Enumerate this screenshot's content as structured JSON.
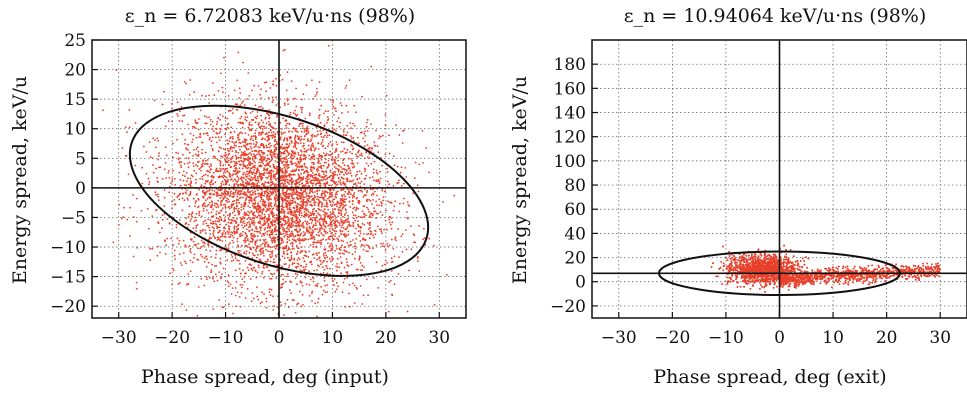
{
  "chart_data": [
    {
      "type": "scatter",
      "title": "ε_n = 6.72083 keV/u·ns (98%)",
      "xlabel": "Phase spread, deg (input)",
      "ylabel": "Energy spread, keV/u",
      "xlim": [
        -35,
        35
      ],
      "ylim": [
        -22,
        25
      ],
      "xticks": [
        "−30",
        "−20",
        "−10",
        "0",
        "10",
        "20",
        "30"
      ],
      "yticks": [
        "25",
        "20",
        "15",
        "10",
        "5",
        "0",
        "−5",
        "−10",
        "−15",
        "−20"
      ],
      "grid": true,
      "point_color": "#e8402a",
      "distribution": {
        "points": 5000,
        "center": [
          0,
          -1.5
        ],
        "sigma_major": 10.5,
        "sigma_minor": 3.2,
        "tilt_deg": -18
      },
      "ellipse": {
        "center": [
          0,
          -0.5
        ],
        "semi_x": 29,
        "semi_y": 12.5,
        "tilt_deg": -18
      },
      "crosshair": {
        "x": 0,
        "y": 0
      }
    },
    {
      "type": "scatter",
      "title": "ε_n = 10.94064 keV/u·ns (98%)",
      "xlabel": "Phase spread, deg (exit)",
      "ylabel": "Energy spread, keV/u",
      "xlim": [
        -35,
        35
      ],
      "ylim": [
        -30,
        200
      ],
      "xticks": [
        "−30",
        "−20",
        "−10",
        "0",
        "10",
        "20",
        "30"
      ],
      "yticks": [
        "180",
        "160",
        "140",
        "120",
        "100",
        "80",
        "60",
        "40",
        "20",
        "0",
        "−20"
      ],
      "grid": true,
      "point_color": "#e8402a",
      "distribution": {
        "points": 5000,
        "core_center": [
          -3,
          10
        ],
        "tail_x_range": [
          0,
          30
        ],
        "tail_y_range": [
          0,
          15
        ]
      },
      "ellipse": {
        "center": [
          0,
          7
        ],
        "semi_x": 22.5,
        "semi_y": 18,
        "tilt_deg": 0
      },
      "crosshair": {
        "x": 0,
        "y": 7
      }
    }
  ]
}
